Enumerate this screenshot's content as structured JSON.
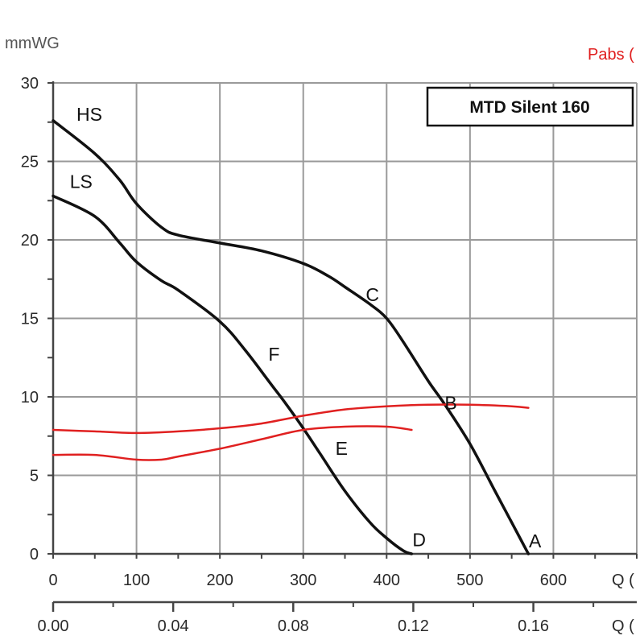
{
  "chart_data": {
    "type": "line",
    "title": "MTD Silent 160",
    "ylabel": "mmWG",
    "ylabel_right": "Pabs (",
    "xlabel": "Q (",
    "xlabel_secondary": "Q (",
    "xlim": [
      0,
      700
    ],
    "ylim": [
      0,
      30
    ],
    "grid": true,
    "x_ticks": [
      "0",
      "100",
      "200",
      "300",
      "400",
      "500",
      "600"
    ],
    "x_secondary_ticks": [
      "0.00",
      "0.04",
      "0.08",
      "0.12",
      "0.16"
    ],
    "y_ticks": [
      "0",
      "5",
      "10",
      "15",
      "20",
      "25",
      "30"
    ],
    "series": [
      {
        "name": "HS",
        "color": "#111111",
        "x": [
          0,
          50,
          80,
          100,
          130,
          150,
          200,
          250,
          300,
          330,
          350,
          380,
          400,
          420,
          450,
          470,
          500,
          530,
          560,
          570
        ],
        "y": [
          27.6,
          25.5,
          23.8,
          22.3,
          20.8,
          20.3,
          19.8,
          19.3,
          18.5,
          17.7,
          17.0,
          15.9,
          15.0,
          13.5,
          11.0,
          9.5,
          7.0,
          4.0,
          1.0,
          0
        ]
      },
      {
        "name": "LS",
        "color": "#111111",
        "x": [
          0,
          50,
          80,
          100,
          130,
          150,
          200,
          230,
          260,
          280,
          300,
          320,
          350,
          380,
          400,
          420,
          430
        ],
        "y": [
          22.8,
          21.5,
          19.8,
          18.6,
          17.4,
          16.8,
          14.8,
          13.0,
          10.9,
          9.5,
          8.0,
          6.4,
          4.0,
          2.0,
          1.0,
          0.2,
          0
        ]
      },
      {
        "name": "",
        "color": "#e02020",
        "x": [
          0,
          50,
          100,
          150,
          200,
          250,
          300,
          350,
          400,
          450,
          500,
          550,
          570
        ],
        "y": [
          7.9,
          7.8,
          7.7,
          7.8,
          8.0,
          8.3,
          8.8,
          9.2,
          9.4,
          9.5,
          9.5,
          9.4,
          9.3
        ]
      },
      {
        "name": "",
        "color": "#e02020",
        "x": [
          0,
          50,
          100,
          130,
          150,
          200,
          250,
          300,
          350,
          400,
          430
        ],
        "y": [
          6.3,
          6.3,
          6.0,
          6.0,
          6.2,
          6.7,
          7.3,
          7.9,
          8.1,
          8.1,
          7.9
        ]
      }
    ],
    "points": [
      {
        "label": "A",
        "x": 578,
        "y": 0.4
      },
      {
        "label": "B",
        "x": 477,
        "y": 9.2
      },
      {
        "label": "C",
        "x": 383,
        "y": 16.1
      },
      {
        "label": "D",
        "x": 439,
        "y": 0.5
      },
      {
        "label": "E",
        "x": 346,
        "y": 6.3
      },
      {
        "label": "F",
        "x": 265,
        "y": 12.3
      }
    ],
    "curve_labels": [
      {
        "label": "HS",
        "x": 28,
        "y": 27.6
      },
      {
        "label": "LS",
        "x": 20,
        "y": 23.3
      }
    ]
  }
}
